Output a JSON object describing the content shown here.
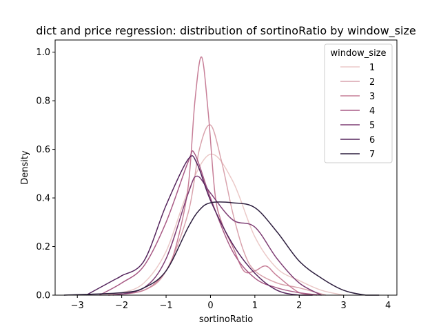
{
  "chart_data": {
    "type": "line",
    "title": "dict and price regression: distribution of sortinoRatio by window_size",
    "xlabel": "sortinoRatio",
    "ylabel": "Density",
    "xlim": [
      -3.5,
      4.2
    ],
    "ylim": [
      0,
      1.05
    ],
    "xticks": [
      -3,
      -2,
      -1,
      0,
      1,
      2,
      3,
      4
    ],
    "xtick_labels": [
      "−3",
      "−2",
      "−1",
      "0",
      "1",
      "2",
      "3",
      "4"
    ],
    "yticks": [
      0.0,
      0.2,
      0.4,
      0.6,
      0.8,
      1.0
    ],
    "ytick_labels": [
      "0.0",
      "0.2",
      "0.4",
      "0.6",
      "0.8",
      "1.0"
    ],
    "grid": false,
    "legend": {
      "title": "window_size",
      "placement": "top-right"
    },
    "series": [
      {
        "name": "1",
        "color": "#ebc9c8",
        "x": [
          -2.5,
          -2,
          -1.5,
          -1,
          -0.5,
          0,
          0.5,
          1,
          1.5,
          2,
          2.5,
          3
        ],
        "y": [
          0.0,
          0.01,
          0.05,
          0.18,
          0.43,
          0.58,
          0.47,
          0.24,
          0.11,
          0.06,
          0.02,
          0.0
        ]
      },
      {
        "name": "2",
        "color": "#d9a3ad",
        "x": [
          -2.3,
          -1.5,
          -1,
          -0.5,
          -0.25,
          0,
          0.25,
          0.5,
          0.75,
          1,
          1.5,
          2,
          2.6
        ],
        "y": [
          0.0,
          0.02,
          0.1,
          0.34,
          0.6,
          0.7,
          0.55,
          0.34,
          0.18,
          0.1,
          0.05,
          0.03,
          0.0
        ]
      },
      {
        "name": "3",
        "color": "#c77e97",
        "x": [
          -2.3,
          -1.5,
          -1,
          -0.75,
          -0.5,
          -0.35,
          -0.2,
          -0.05,
          0.1,
          0.25,
          0.5,
          0.75,
          1,
          1.25,
          1.5,
          2,
          2.4
        ],
        "y": [
          0.0,
          0.02,
          0.1,
          0.22,
          0.45,
          0.8,
          0.98,
          0.75,
          0.42,
          0.3,
          0.2,
          0.1,
          0.1,
          0.12,
          0.08,
          0.01,
          0.0
        ]
      },
      {
        "name": "4",
        "color": "#a85a85",
        "x": [
          -2.5,
          -2,
          -1.5,
          -1,
          -0.5,
          -0.35,
          0,
          0.5,
          1,
          1.5,
          2,
          2.5
        ],
        "y": [
          0.0,
          0.05,
          0.12,
          0.3,
          0.55,
          0.58,
          0.4,
          0.18,
          0.07,
          0.03,
          0.01,
          0.0
        ]
      },
      {
        "name": "5",
        "color": "#7f3f75",
        "x": [
          -2.2,
          -1.5,
          -1,
          -0.5,
          -0.3,
          0,
          0.5,
          1,
          1.5,
          2,
          2.5
        ],
        "y": [
          0.0,
          0.03,
          0.15,
          0.42,
          0.49,
          0.42,
          0.31,
          0.28,
          0.15,
          0.05,
          0.0
        ]
      },
      {
        "name": "6",
        "color": "#54245c",
        "x": [
          -2.8,
          -2.2,
          -2,
          -1.5,
          -1,
          -0.5,
          -0.3,
          0,
          0.5,
          1,
          1.5,
          2,
          2.3
        ],
        "y": [
          0.0,
          0.06,
          0.08,
          0.14,
          0.37,
          0.56,
          0.54,
          0.39,
          0.21,
          0.09,
          0.02,
          0.0,
          0.0
        ]
      },
      {
        "name": "7",
        "color": "#2d1e3e",
        "x": [
          -3.3,
          -2,
          -1.5,
          -1,
          -0.5,
          -0.25,
          0,
          0.5,
          1,
          1.5,
          2,
          2.5,
          3,
          3.5,
          3.8
        ],
        "y": [
          0.0,
          0.01,
          0.03,
          0.1,
          0.28,
          0.35,
          0.38,
          0.38,
          0.36,
          0.26,
          0.14,
          0.07,
          0.02,
          0.0,
          0.0
        ]
      }
    ]
  }
}
